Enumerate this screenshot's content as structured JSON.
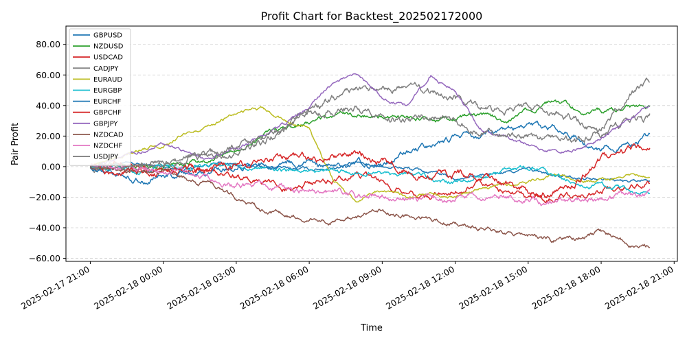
{
  "chart_data": {
    "type": "line",
    "title": "Profit Chart for Backtest_202502172000",
    "xlabel": "Time",
    "ylabel": "Pair Profit",
    "ylim": [
      -62,
      92
    ],
    "yticks": [
      -60,
      -40,
      -20,
      0,
      20,
      40,
      60,
      80
    ],
    "ytick_labels": [
      "−60.00",
      "−40.00",
      "−20.00",
      "0.00",
      "20.00",
      "40.00",
      "60.00",
      "80.00"
    ],
    "xlim": [
      "2025-02-17 20:00",
      "2025-02-18 21:08"
    ],
    "xticks": [
      "2025-02-17 21:00",
      "2025-02-18 00:00",
      "2025-02-18 03:00",
      "2025-02-18 06:00",
      "2025-02-18 09:00",
      "2025-02-18 12:00",
      "2025-02-18 15:00",
      "2025-02-18 18:00",
      "2025-02-18 21:00"
    ],
    "grid": "y-dashed",
    "legend_position": "top-left",
    "x": [
      "2025-02-17 21:00",
      "2025-02-17 22:00",
      "2025-02-17 23:00",
      "2025-02-18 00:00",
      "2025-02-18 01:00",
      "2025-02-18 02:00",
      "2025-02-18 03:00",
      "2025-02-18 04:00",
      "2025-02-18 05:00",
      "2025-02-18 06:00",
      "2025-02-18 07:00",
      "2025-02-18 08:00",
      "2025-02-18 09:00",
      "2025-02-18 10:00",
      "2025-02-18 11:00",
      "2025-02-18 12:00",
      "2025-02-18 13:00",
      "2025-02-18 14:00",
      "2025-02-18 15:00",
      "2025-02-18 16:00",
      "2025-02-18 17:00",
      "2025-02-18 18:00",
      "2025-02-18 19:00",
      "2025-02-18 20:00"
    ],
    "series": [
      {
        "name": "GBPUSD",
        "color": "#1f77b4",
        "values": [
          0,
          2,
          1,
          0,
          -1,
          2,
          1,
          0,
          -1,
          -2,
          0,
          2,
          1,
          -1,
          -4,
          -8,
          -6,
          -4,
          -2,
          -6,
          -8,
          -6,
          -10,
          -8
        ]
      },
      {
        "name": "NZDUSD",
        "color": "#2ca02c",
        "values": [
          0,
          1,
          2,
          1,
          2,
          5,
          10,
          20,
          25,
          28,
          32,
          34,
          33,
          32,
          30,
          31,
          34,
          30,
          38,
          42,
          38,
          36,
          38,
          40
        ]
      },
      {
        "name": "USDCAD",
        "color": "#d62728",
        "values": [
          0,
          2,
          0,
          -2,
          -3,
          -4,
          -5,
          -10,
          -15,
          -10,
          -8,
          -5,
          -10,
          -15,
          -20,
          -15,
          -12,
          -15,
          -22,
          -20,
          -18,
          -15,
          -12,
          -10
        ]
      },
      {
        "name": "CADJPY",
        "color": "#7f7f7f",
        "values": [
          0,
          1,
          2,
          3,
          5,
          6,
          8,
          15,
          25,
          35,
          45,
          50,
          48,
          52,
          48,
          45,
          38,
          36,
          40,
          35,
          30,
          20,
          30,
          32
        ]
      },
      {
        "name": "EURAUD",
        "color": "#bcbd22",
        "values": [
          0,
          6,
          12,
          14,
          22,
          28,
          35,
          38,
          30,
          25,
          -10,
          -22,
          -15,
          -20,
          -18,
          -20,
          -15,
          -12,
          -10,
          -5,
          -8,
          -10,
          -6,
          -8
        ]
      },
      {
        "name": "EURGBP",
        "color": "#17becf",
        "values": [
          0,
          -1,
          -2,
          -1,
          0,
          1,
          2,
          0,
          -2,
          -3,
          -4,
          -3,
          -5,
          -6,
          -8,
          -10,
          -8,
          -2,
          0,
          -5,
          -10,
          -12,
          -14,
          -18
        ]
      },
      {
        "name": "EURCHF",
        "color": "#1f77b4",
        "values": [
          0,
          -5,
          -8,
          -6,
          -4,
          -2,
          0,
          2,
          3,
          2,
          0,
          1,
          0,
          10,
          15,
          18,
          20,
          22,
          25,
          24,
          20,
          10,
          15,
          22
        ]
      },
      {
        "name": "GBPCHF",
        "color": "#d62728",
        "values": [
          0,
          -3,
          -5,
          -4,
          -2,
          0,
          2,
          3,
          4,
          5,
          6,
          8,
          5,
          0,
          -8,
          -5,
          -10,
          -12,
          -15,
          -18,
          -10,
          5,
          10,
          15
        ]
      },
      {
        "name": "GBPJPY",
        "color": "#9467bd",
        "values": [
          0,
          5,
          10,
          15,
          8,
          5,
          12,
          20,
          28,
          40,
          55,
          60,
          45,
          40,
          60,
          50,
          25,
          20,
          15,
          10,
          12,
          18,
          30,
          40
        ]
      },
      {
        "name": "NZDCAD",
        "color": "#8c564b",
        "values": [
          0,
          -2,
          -4,
          -5,
          -8,
          -12,
          -20,
          -28,
          -32,
          -34,
          -35,
          -32,
          -30,
          -33,
          -35,
          -37,
          -40,
          -42,
          -45,
          -48,
          -46,
          -44,
          -50,
          -52
        ]
      },
      {
        "name": "NZDCHF",
        "color": "#e377c2",
        "values": [
          0,
          -1,
          -2,
          -3,
          -5,
          -8,
          -12,
          -14,
          -15,
          -16,
          -18,
          -20,
          -20,
          -19,
          -22,
          -21,
          -20,
          -19,
          -22,
          -24,
          -23,
          -21,
          -20,
          -18
        ]
      },
      {
        "name": "USDJPY",
        "color": "#7f7f7f",
        "values": [
          0,
          1,
          2,
          4,
          6,
          8,
          12,
          18,
          25,
          35,
          38,
          40,
          35,
          30,
          32,
          30,
          25,
          22,
          20,
          18,
          15,
          25,
          45,
          55
        ]
      }
    ]
  }
}
